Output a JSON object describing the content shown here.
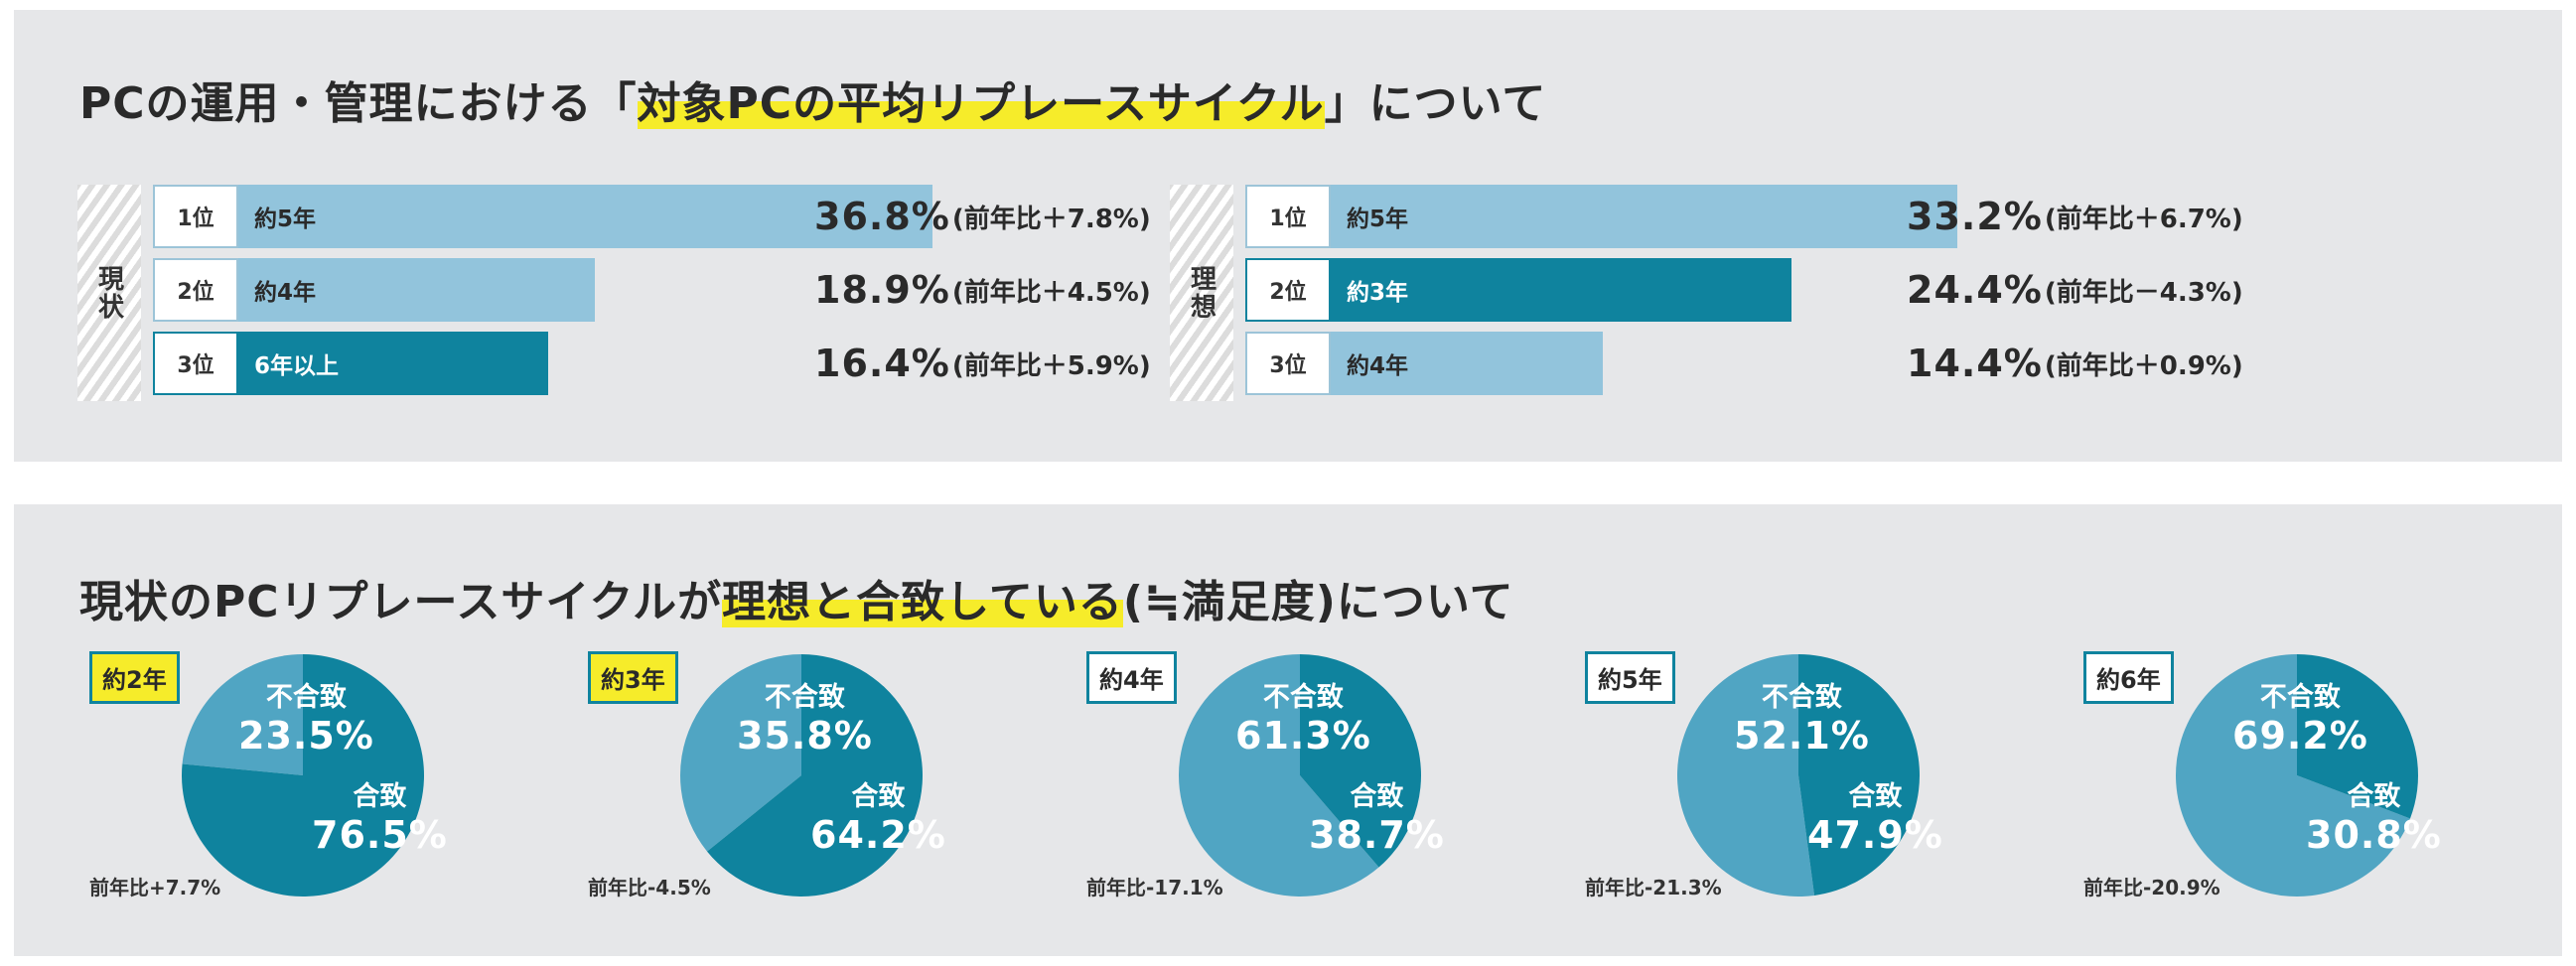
{
  "colors": {
    "light": "#92c4dc",
    "dark": "#0f839e",
    "pie_light": "#50a5c3",
    "pie_dark": "#0f839e",
    "highlight": "#f6ec2a",
    "panel": "#e6e7e9"
  },
  "top": {
    "title_pre": "PCの運用・管理における「",
    "title_hl": "対象PCの平均リプレースサイクル",
    "title_post": "」について",
    "groups": [
      {
        "side_label": "現状",
        "rows": [
          {
            "rank": "1位",
            "label": "約5年",
            "pct": "36.8%",
            "yoy": "(前年比＋7.8%)",
            "value": 36.8,
            "style": "light"
          },
          {
            "rank": "2位",
            "label": "約4年",
            "pct": "18.9%",
            "yoy": "(前年比＋4.5%)",
            "value": 18.9,
            "style": "light"
          },
          {
            "rank": "3位",
            "label": "6年以上",
            "pct": "16.4%",
            "yoy": "(前年比＋5.9%)",
            "value": 16.4,
            "style": "dark"
          }
        ]
      },
      {
        "side_label": "理想",
        "rows": [
          {
            "rank": "1位",
            "label": "約5年",
            "pct": "33.2%",
            "yoy": "(前年比＋6.7%)",
            "value": 33.2,
            "style": "light"
          },
          {
            "rank": "2位",
            "label": "約3年",
            "pct": "24.4%",
            "yoy": "(前年比－4.3%)",
            "value": 24.4,
            "style": "dark"
          },
          {
            "rank": "3位",
            "label": "約4年",
            "pct": "14.4%",
            "yoy": "(前年比＋0.9%)",
            "value": 14.4,
            "style": "light"
          }
        ]
      }
    ]
  },
  "bottom": {
    "title_pre": "現状のPCリプレースサイクルが",
    "title_hl": "理想と合致している",
    "title_post": "(≒満足度)について"
  },
  "chart_data": [
    {
      "type": "bar",
      "title": "PCの運用・管理における「対象PCの平均リプレースサイクル」について — 現状",
      "categories": [
        "約5年",
        "約4年",
        "6年以上"
      ],
      "values": [
        36.8,
        18.9,
        16.4
      ],
      "yoy_change": [
        7.8,
        4.5,
        5.9
      ],
      "unit": "%"
    },
    {
      "type": "bar",
      "title": "PCの運用・管理における「対象PCの平均リプレースサイクル」について — 理想",
      "categories": [
        "約5年",
        "約3年",
        "約4年"
      ],
      "values": [
        33.2,
        24.4,
        14.4
      ],
      "yoy_change": [
        6.7,
        -4.3,
        0.9
      ],
      "unit": "%"
    },
    {
      "type": "pie",
      "title": "現状のPCリプレースサイクルが理想と合致している(≒満足度)について",
      "pies": [
        {
          "tag": "約2年",
          "highlight": true,
          "match_label": "合致",
          "match": 76.5,
          "match_text": "76.5%",
          "nonmatch_label": "不合致",
          "nonmatch": 23.5,
          "nonmatch_text": "23.5%",
          "yoy": "前年比+7.7%"
        },
        {
          "tag": "約3年",
          "highlight": true,
          "match_label": "合致",
          "match": 64.2,
          "match_text": "64.2%",
          "nonmatch_label": "不合致",
          "nonmatch": 35.8,
          "nonmatch_text": "35.8%",
          "yoy": "前年比-4.5%"
        },
        {
          "tag": "約4年",
          "highlight": false,
          "match_label": "合致",
          "match": 38.7,
          "match_text": "38.7%",
          "nonmatch_label": "不合致",
          "nonmatch": 61.3,
          "nonmatch_text": "61.3%",
          "yoy": "前年比-17.1%"
        },
        {
          "tag": "約5年",
          "highlight": false,
          "match_label": "合致",
          "match": 47.9,
          "match_text": "47.9%",
          "nonmatch_label": "不合致",
          "nonmatch": 52.1,
          "nonmatch_text": "52.1%",
          "yoy": "前年比-21.3%"
        },
        {
          "tag": "約6年",
          "highlight": false,
          "match_label": "合致",
          "match": 30.8,
          "match_text": "30.8%",
          "nonmatch_label": "不合致",
          "nonmatch": 69.2,
          "nonmatch_text": "69.2%",
          "yoy": "前年比-20.9%"
        }
      ]
    }
  ]
}
